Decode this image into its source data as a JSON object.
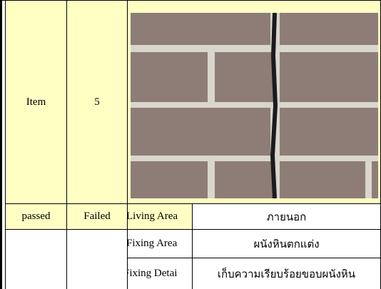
{
  "table": {
    "rows": [
      {
        "item": "Item",
        "count": "5"
      },
      {
        "status": "passed",
        "result": "Failed",
        "label": "Living Area",
        "value": "ภายนอก"
      },
      {
        "label": "Fixing Area",
        "value": "ผนังหินตกแต่ง"
      },
      {
        "label": "Fixing Detai",
        "value": "เก็บความเรียบร้อยขอบผนังหิน"
      }
    ]
  }
}
